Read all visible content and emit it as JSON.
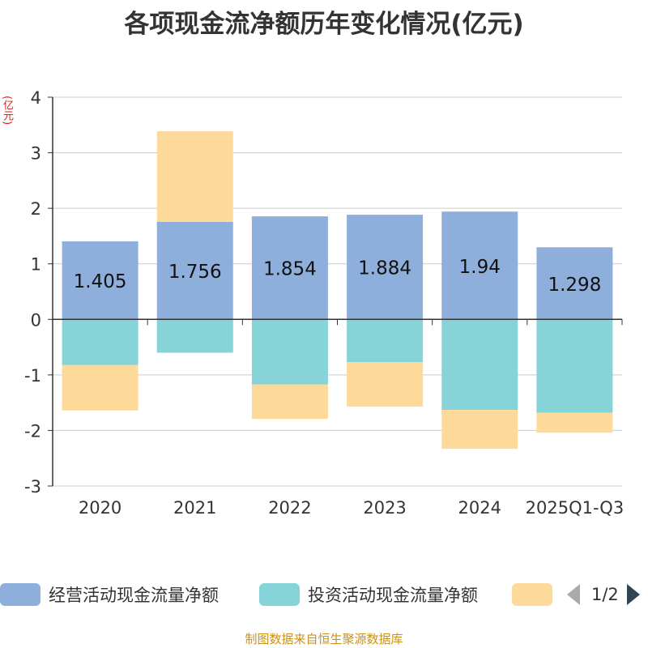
{
  "chart_data": {
    "type": "bar",
    "stacked": true,
    "title": "各项现金流净额历年变化情况(亿元)",
    "ylabel": "(亿元)",
    "xlabel": "",
    "categories": [
      "2020",
      "2021",
      "2022",
      "2023",
      "2024",
      "2025Q1-Q3"
    ],
    "ylim": [
      -3,
      4
    ],
    "yticks": [
      -3,
      -2,
      -1,
      0,
      1,
      2,
      3,
      4
    ],
    "grid": true,
    "series": [
      {
        "name": "经营活动现金流量净额",
        "color": "#8eaedb",
        "values": [
          1.405,
          1.756,
          1.854,
          1.884,
          1.94,
          1.298
        ],
        "data_labels": [
          "1.405",
          "1.756",
          "1.854",
          "1.884",
          "1.94",
          "1.298"
        ]
      },
      {
        "name": "投资活动现金流量净额",
        "color": "#86d4d7",
        "values": [
          -0.82,
          -0.6,
          -1.17,
          -0.77,
          -1.63,
          -1.68
        ]
      },
      {
        "name": "",
        "color": "#fdd99a",
        "values": [
          -0.82,
          1.63,
          -0.62,
          -0.8,
          -0.7,
          -0.36
        ]
      }
    ]
  },
  "legend": {
    "page_text": "1/2"
  },
  "source_text": "制图数据来自恒生聚源数据库"
}
